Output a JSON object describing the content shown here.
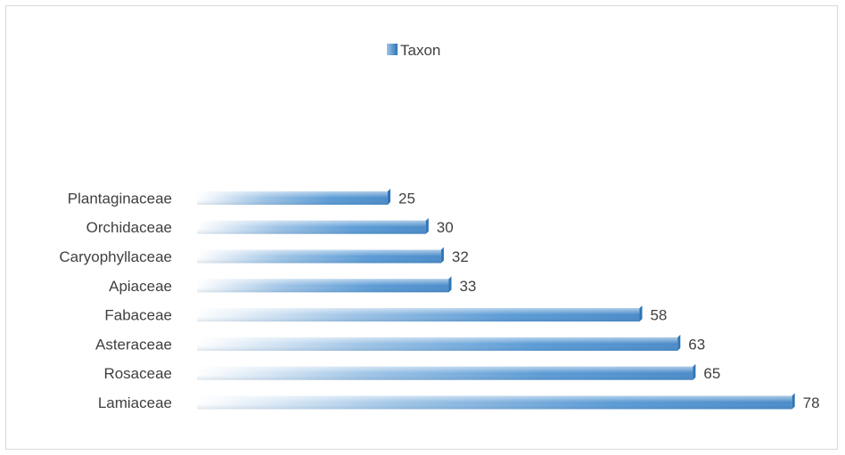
{
  "chart_data": {
    "type": "bar",
    "orientation": "horizontal",
    "categories": [
      "Lamiaceae",
      "Rosaceae",
      "Asteraceae",
      "Fabaceae",
      "Apiaceae",
      "Caryophyllaceae",
      "Orchidaceae",
      "Plantaginaceae"
    ],
    "series": [
      {
        "name": "Taxon",
        "values": [
          78,
          65,
          63,
          58,
          33,
          32,
          30,
          25
        ]
      }
    ],
    "xlim": [
      0,
      80
    ],
    "legend_position": "top",
    "grid": false,
    "data_labels": true,
    "colors": {
      "bar": "#5b9bd5",
      "bar_light": "#ffffff",
      "bar_dark": "#2e75b6",
      "text": "#404040",
      "border": "#d9d9d9"
    }
  }
}
